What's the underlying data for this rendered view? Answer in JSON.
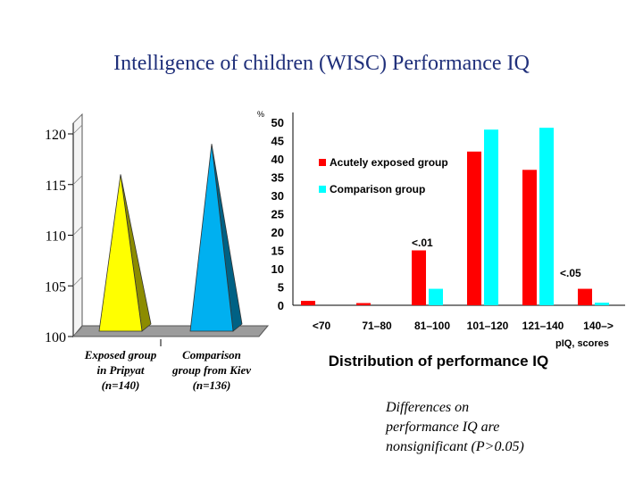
{
  "slide": {
    "title": "Intelligence of children (WISC) Performance IQ",
    "note_lines": [
      "Differences on",
      "performance IQ are",
      "nonsignificant (P>0.05)"
    ]
  },
  "chart_data": [
    {
      "type": "bar",
      "style": "3d-pyramid",
      "title": "",
      "ylim": [
        100,
        120
      ],
      "yticks": [
        100,
        105,
        110,
        115,
        120
      ],
      "categories": [
        [
          "Exposed group",
          "in Pripyat",
          "(n=140)"
        ],
        [
          "Comparison",
          "group from Kiev",
          "(n=136)"
        ]
      ],
      "values": [
        116,
        119
      ],
      "colors": [
        "#ffff00",
        "#00b0f0"
      ],
      "grid": false
    },
    {
      "type": "bar",
      "title": "Distribution of performance IQ",
      "xlabel": "pIQ, scores",
      "ylabel": "%",
      "ylim": [
        0,
        50
      ],
      "yticks": [
        0,
        5,
        10,
        15,
        20,
        25,
        30,
        35,
        40,
        45,
        50
      ],
      "categories": [
        "<70",
        "71–80",
        "81–100",
        "101–120",
        "121–140",
        "140–>"
      ],
      "series": [
        {
          "name": "Acutely exposed group",
          "color": "#ff0000",
          "values": [
            1.2,
            0.6,
            15,
            42,
            37,
            4.5
          ]
        },
        {
          "name": "Comparison group",
          "color": "#00ffff",
          "values": [
            0,
            0,
            4.5,
            48,
            48.5,
            0.7
          ]
        }
      ],
      "annotations": [
        "<.01",
        "<.05"
      ],
      "legend": "top-left",
      "grid": false
    }
  ]
}
